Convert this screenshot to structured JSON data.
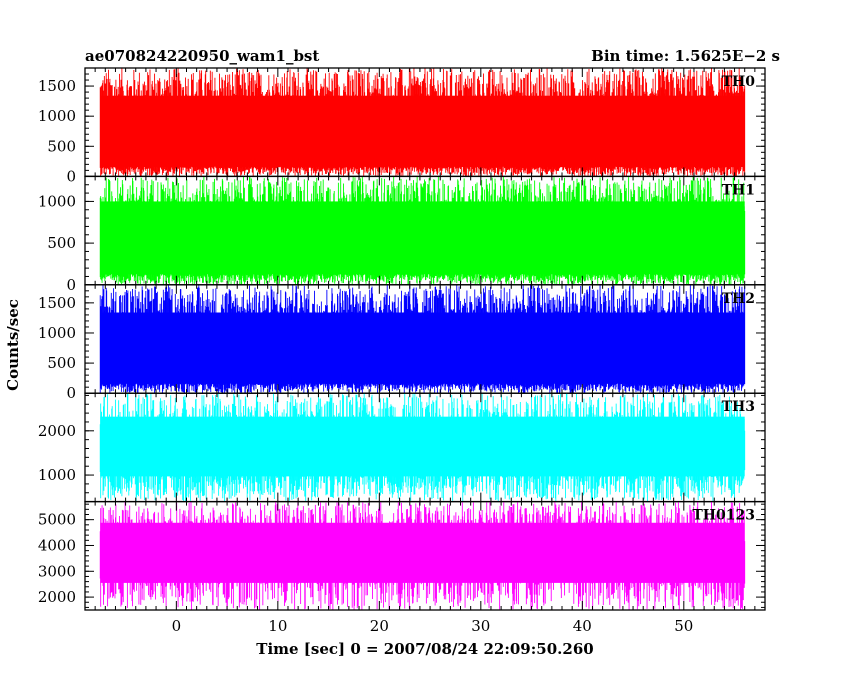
{
  "chart_data": {
    "type": "line",
    "title": "ae070824220950_wam1_bst",
    "subtitle": "Bin time: 1.5625E−2 s",
    "xlabel": "Time [sec] 0 = 2007/08/24 22:09:50.260",
    "ylabel": "Counts/sec",
    "xlim": [
      -9,
      58
    ],
    "x_data_range": [
      -7.5,
      56
    ],
    "xticks": [
      0,
      10,
      20,
      30,
      40,
      50
    ],
    "grid": false,
    "legend": "none",
    "panels": [
      {
        "name": "TH0",
        "color": "#ff0000",
        "ylim": [
          0,
          1800
        ],
        "yticks": [
          0,
          500,
          1000,
          1500
        ],
        "ytick_labels": [
          "0",
          "500",
          "1000",
          "1500"
        ],
        "mean": 700,
        "upper_envelope": 1500,
        "lower_envelope": 100,
        "max": 1800,
        "min": 0
      },
      {
        "name": "TH1",
        "color": "#00ff00",
        "ylim": [
          0,
          1300
        ],
        "yticks": [
          0,
          500,
          1000
        ],
        "ytick_labels": [
          "0",
          "500",
          "1000"
        ],
        "mean": 600,
        "upper_envelope": 1100,
        "lower_envelope": 80,
        "max": 1300,
        "min": 0
      },
      {
        "name": "TH2",
        "color": "#0000ff",
        "ylim": [
          0,
          1800
        ],
        "yticks": [
          0,
          500,
          1000,
          1500
        ],
        "ytick_labels": [
          "0",
          "500",
          "1000",
          "1500"
        ],
        "mean": 700,
        "upper_envelope": 1500,
        "lower_envelope": 100,
        "max": 1800,
        "min": 0
      },
      {
        "name": "TH3",
        "color": "#00ffff",
        "ylim": [
          400,
          2850
        ],
        "yticks": [
          1000,
          2000
        ],
        "ytick_labels": [
          "1000",
          "2000"
        ],
        "mean": 1600,
        "upper_envelope": 2500,
        "lower_envelope": 700,
        "max": 2850,
        "min": 400
      },
      {
        "name": "TH0123",
        "color": "#ff00ff",
        "ylim": [
          1500,
          5700
        ],
        "yticks": [
          2000,
          3000,
          4000,
          5000
        ],
        "ytick_labels": [
          "2000",
          "3000",
          "4000",
          "5000"
        ],
        "mean": 3600,
        "upper_envelope": 5200,
        "lower_envelope": 2100,
        "max": 5700,
        "min": 1500
      }
    ]
  }
}
